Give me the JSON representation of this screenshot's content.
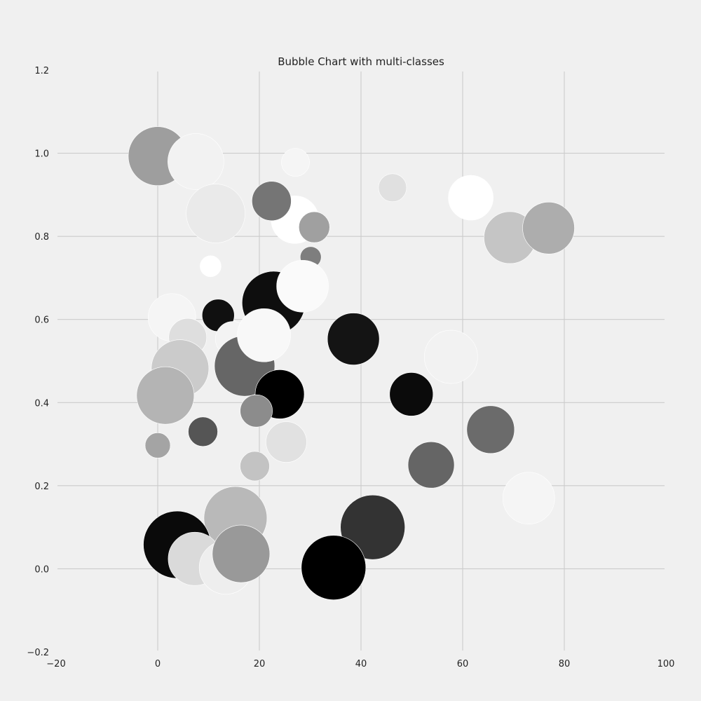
{
  "chart_data": {
    "type": "scatter",
    "subtype": "bubble",
    "title": "Bubble Chart with multi-classes",
    "xlabel": "",
    "ylabel": "",
    "xlim": [
      -20,
      100
    ],
    "ylim": [
      -0.2,
      1.2
    ],
    "x_ticks": [
      "−20",
      "0",
      "20",
      "40",
      "60",
      "80",
      "100"
    ],
    "y_ticks": [
      "−0.2",
      "0.0",
      "0.2",
      "0.4",
      "0.6",
      "0.8",
      "1.0",
      "1.2"
    ],
    "grid": true,
    "background": "#f0f0f0",
    "grid_color": "#cbcbcb",
    "points": [
      {
        "x": 0.0,
        "y": 0.993,
        "r": 42,
        "color": "#9e9e9e"
      },
      {
        "x": 7.5,
        "y": 0.98,
        "r": 40,
        "color": "#f2f2f2"
      },
      {
        "x": 27.1,
        "y": 0.978,
        "r": 20,
        "color": "#f5f5f5"
      },
      {
        "x": 46.2,
        "y": 0.917,
        "r": 20,
        "color": "#e0e0e0"
      },
      {
        "x": 61.6,
        "y": 0.893,
        "r": 32,
        "color": "#ffffff"
      },
      {
        "x": 11.4,
        "y": 0.855,
        "r": 42,
        "color": "#eaeaea"
      },
      {
        "x": 27.0,
        "y": 0.84,
        "r": 34,
        "color": "#ffffff"
      },
      {
        "x": 22.4,
        "y": 0.885,
        "r": 28,
        "color": "#757575"
      },
      {
        "x": 30.8,
        "y": 0.822,
        "r": 22,
        "color": "#a0a0a0"
      },
      {
        "x": 69.3,
        "y": 0.797,
        "r": 37,
        "color": "#c5c5c5"
      },
      {
        "x": 76.9,
        "y": 0.82,
        "r": 37,
        "color": "#adadad"
      },
      {
        "x": 30.1,
        "y": 0.75,
        "r": 15,
        "color": "#7e7e7e"
      },
      {
        "x": 10.4,
        "y": 0.728,
        "r": 15,
        "color": "#ffffff"
      },
      {
        "x": 22.8,
        "y": 0.64,
        "r": 45,
        "color": "#0e0e0e"
      },
      {
        "x": 28.5,
        "y": 0.68,
        "r": 37,
        "color": "#fafafa"
      },
      {
        "x": 2.8,
        "y": 0.605,
        "r": 34,
        "color": "#f5f5f5"
      },
      {
        "x": 11.9,
        "y": 0.61,
        "r": 23,
        "color": "#101010"
      },
      {
        "x": 14.8,
        "y": 0.553,
        "r": 25,
        "color": "#f3f3f3"
      },
      {
        "x": 5.9,
        "y": 0.557,
        "r": 27,
        "color": "#dedede"
      },
      {
        "x": 38.5,
        "y": 0.553,
        "r": 37,
        "color": "#141414"
      },
      {
        "x": 57.7,
        "y": 0.51,
        "r": 38,
        "color": "#f2f2f2"
      },
      {
        "x": 17.1,
        "y": 0.488,
        "r": 43,
        "color": "#666666"
      },
      {
        "x": 20.9,
        "y": 0.562,
        "r": 38,
        "color": "#f8f8f8"
      },
      {
        "x": 4.4,
        "y": 0.482,
        "r": 41,
        "color": "#cbcbcb"
      },
      {
        "x": 1.5,
        "y": 0.417,
        "r": 41,
        "color": "#b4b4b4"
      },
      {
        "x": 24.0,
        "y": 0.42,
        "r": 35,
        "color": "#000000"
      },
      {
        "x": 49.9,
        "y": 0.42,
        "r": 31,
        "color": "#0b0b0b"
      },
      {
        "x": 19.4,
        "y": 0.38,
        "r": 23,
        "color": "#8c8c8c"
      },
      {
        "x": 65.5,
        "y": 0.335,
        "r": 34,
        "color": "#6b6b6b"
      },
      {
        "x": 8.9,
        "y": 0.33,
        "r": 21,
        "color": "#555555"
      },
      {
        "x": 0.0,
        "y": 0.297,
        "r": 18,
        "color": "#a4a4a4"
      },
      {
        "x": 25.3,
        "y": 0.305,
        "r": 29,
        "color": "#e1e1e1"
      },
      {
        "x": 53.8,
        "y": 0.25,
        "r": 33,
        "color": "#656565"
      },
      {
        "x": 19.1,
        "y": 0.247,
        "r": 21,
        "color": "#c3c3c3"
      },
      {
        "x": 73.0,
        "y": 0.17,
        "r": 37,
        "color": "#f5f5f5"
      },
      {
        "x": 15.3,
        "y": 0.122,
        "r": 45,
        "color": "#b9b9b9"
      },
      {
        "x": 42.3,
        "y": 0.1,
        "r": 46,
        "color": "#333333"
      },
      {
        "x": 3.8,
        "y": 0.058,
        "r": 48,
        "color": "#0a0a0a"
      },
      {
        "x": 7.3,
        "y": 0.024,
        "r": 38,
        "color": "#dadada"
      },
      {
        "x": 13.4,
        "y": 0.003,
        "r": 38,
        "color": "#eeeeee"
      },
      {
        "x": 16.4,
        "y": 0.036,
        "r": 41,
        "color": "#999999"
      },
      {
        "x": 34.6,
        "y": 0.003,
        "r": 46,
        "color": "#000000"
      }
    ]
  }
}
